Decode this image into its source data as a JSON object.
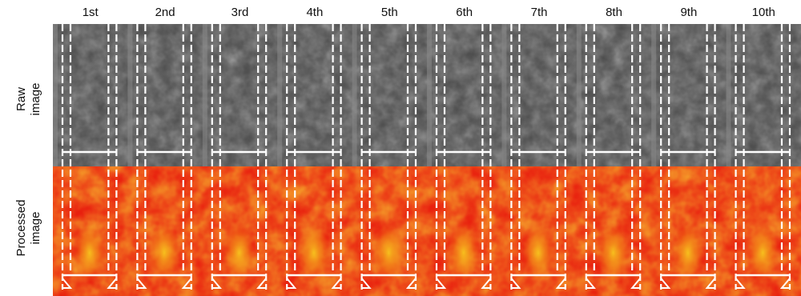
{
  "figure": {
    "columns": [
      "1st",
      "2nd",
      "3rd",
      "4th",
      "5th",
      "6th",
      "7th",
      "8th",
      "9th",
      "10th"
    ],
    "rows": [
      {
        "label": "Raw\nimage",
        "style": "grayscale"
      },
      {
        "label": "Processed\nimage",
        "style": "heatmap"
      }
    ],
    "colors": {
      "raw_background": "#4a4a4a",
      "raw_strip": "#8a8a8a",
      "heat_base": "#e8200e",
      "heat_mid": "#f06a10",
      "heat_hot": "#f5b21a",
      "outline": "#ffffff"
    }
  }
}
